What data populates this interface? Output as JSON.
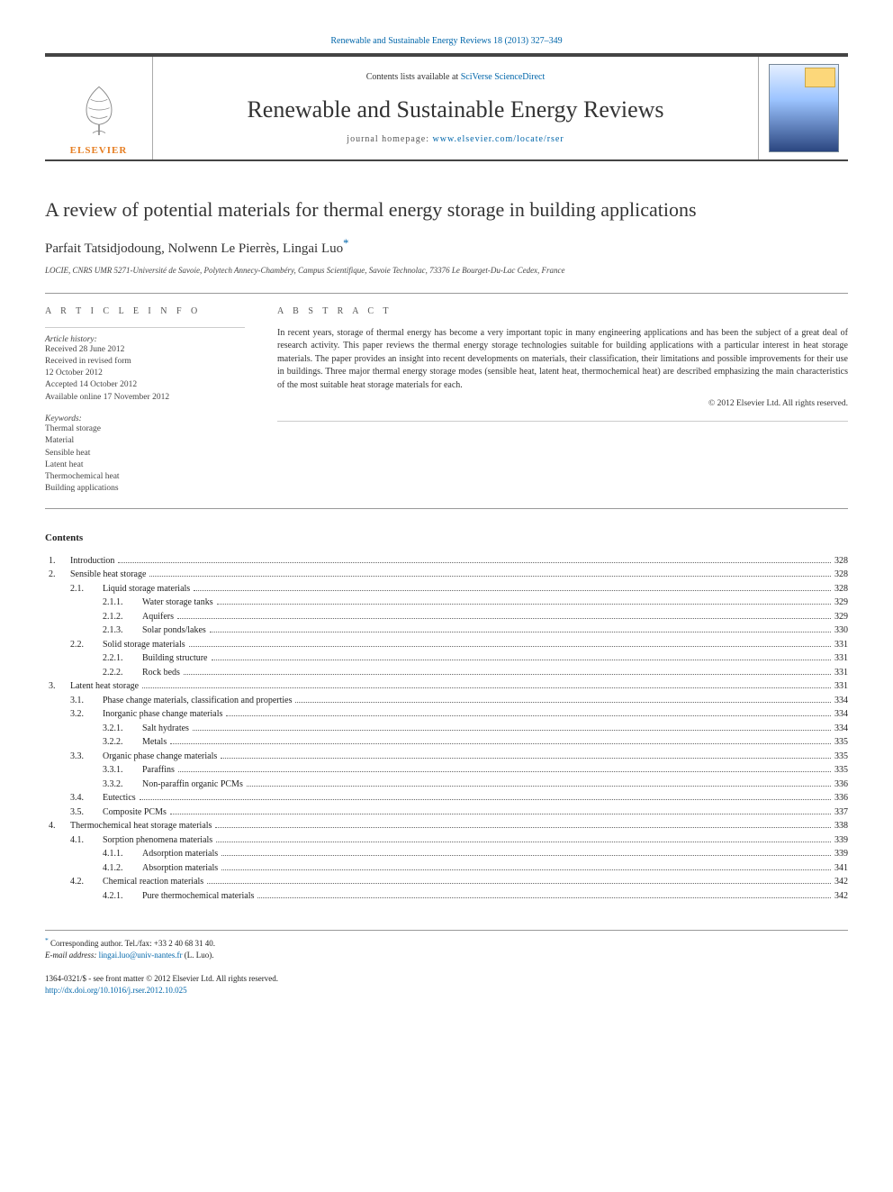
{
  "citation": {
    "journal": "Renewable and Sustainable Energy Reviews",
    "vol_pages": "18 (2013) 327–349"
  },
  "masthead": {
    "contents_prefix": "Contents lists available at",
    "contents_link": "SciVerse ScienceDirect",
    "journal_name": "Renewable and Sustainable Energy Reviews",
    "homepage_label": "journal homepage:",
    "homepage_url": "www.elsevier.com/locate/rser",
    "publisher_label": "ELSEVIER"
  },
  "article": {
    "title": "A review of potential materials for thermal energy storage in building applications",
    "authors": "Parfait Tatsidjodoung, Nolwenn Le Pierrès, Lingai Luo",
    "corr_mark": "*",
    "affiliation": "LOCIE, CNRS UMR 5271-Université de Savoie, Polytech Annecy-Chambéry, Campus Scientifique, Savoie Technolac, 73376 Le Bourget-Du-Lac Cedex, France"
  },
  "info": {
    "head": "A R T I C L E  I N F O",
    "history_label": "Article history:",
    "history": [
      "Received 28 June 2012",
      "Received in revised form",
      "12 October 2012",
      "Accepted 14 October 2012",
      "Available online 17 November 2012"
    ],
    "keywords_label": "Keywords:",
    "keywords": [
      "Thermal storage",
      "Material",
      "Sensible heat",
      "Latent heat",
      "Thermochemical heat",
      "Building applications"
    ]
  },
  "abstract": {
    "head": "A B S T R A C T",
    "text": "In recent years, storage of thermal energy has become a very important topic in many engineering applications and has been the subject of a great deal of research activity. This paper reviews the thermal energy storage technologies suitable for building applications with a particular interest in heat storage materials. The paper provides an insight into recent developments on materials, their classification, their limitations and possible improvements for their use in buildings. Three major thermal energy storage modes (sensible heat, latent heat, thermochemical heat) are described emphasizing the main characteristics of the most suitable heat storage materials for each.",
    "copyright": "© 2012 Elsevier Ltd. All rights reserved."
  },
  "toc": {
    "head": "Contents",
    "rows": [
      {
        "l": 1,
        "n": "1.",
        "t": "Introduction",
        "p": "328"
      },
      {
        "l": 1,
        "n": "2.",
        "t": "Sensible heat storage",
        "p": "328"
      },
      {
        "l": 2,
        "n": "2.1.",
        "t": "Liquid storage materials",
        "p": "328"
      },
      {
        "l": 3,
        "n": "2.1.1.",
        "t": "Water storage tanks",
        "p": "329"
      },
      {
        "l": 3,
        "n": "2.1.2.",
        "t": "Aquifers",
        "p": "329"
      },
      {
        "l": 3,
        "n": "2.1.3.",
        "t": "Solar ponds/lakes",
        "p": "330"
      },
      {
        "l": 2,
        "n": "2.2.",
        "t": "Solid storage materials",
        "p": "331"
      },
      {
        "l": 3,
        "n": "2.2.1.",
        "t": "Building structure",
        "p": "331"
      },
      {
        "l": 3,
        "n": "2.2.2.",
        "t": "Rock beds",
        "p": "331"
      },
      {
        "l": 1,
        "n": "3.",
        "t": "Latent heat storage",
        "p": "331"
      },
      {
        "l": 2,
        "n": "3.1.",
        "t": "Phase change materials, classification and properties",
        "p": "334"
      },
      {
        "l": 2,
        "n": "3.2.",
        "t": "Inorganic phase change materials",
        "p": "334"
      },
      {
        "l": 3,
        "n": "3.2.1.",
        "t": "Salt hydrates",
        "p": "334"
      },
      {
        "l": 3,
        "n": "3.2.2.",
        "t": "Metals",
        "p": "335"
      },
      {
        "l": 2,
        "n": "3.3.",
        "t": "Organic phase change materials",
        "p": "335"
      },
      {
        "l": 3,
        "n": "3.3.1.",
        "t": "Paraffins",
        "p": "335"
      },
      {
        "l": 3,
        "n": "3.3.2.",
        "t": "Non-paraffin organic PCMs",
        "p": "336"
      },
      {
        "l": 2,
        "n": "3.4.",
        "t": "Eutectics",
        "p": "336"
      },
      {
        "l": 2,
        "n": "3.5.",
        "t": "Composite PCMs",
        "p": "337"
      },
      {
        "l": 1,
        "n": "4.",
        "t": "Thermochemical heat storage materials",
        "p": "338"
      },
      {
        "l": 2,
        "n": "4.1.",
        "t": "Sorption phenomena materials",
        "p": "339"
      },
      {
        "l": 3,
        "n": "4.1.1.",
        "t": "Adsorption materials",
        "p": "339"
      },
      {
        "l": 3,
        "n": "4.1.2.",
        "t": "Absorption materials",
        "p": "341"
      },
      {
        "l": 2,
        "n": "4.2.",
        "t": "Chemical reaction materials",
        "p": "342"
      },
      {
        "l": 3,
        "n": "4.2.1.",
        "t": "Pure thermochemical materials",
        "p": "342"
      }
    ]
  },
  "footnotes": {
    "corr": "Corresponding author. Tel./fax: +33 2 40 68 31 40.",
    "email_label": "E-mail address:",
    "email": "lingai.luo@univ-nantes.fr",
    "email_person": "(L. Luo)."
  },
  "pubinfo": {
    "issn_line": "1364-0321/$ - see front matter © 2012 Elsevier Ltd. All rights reserved.",
    "doi_prefix": "http://dx.doi.org/",
    "doi": "10.1016/j.rser.2012.10.025"
  },
  "colors": {
    "link": "#0066aa",
    "elsevier_orange": "#e67e22"
  }
}
